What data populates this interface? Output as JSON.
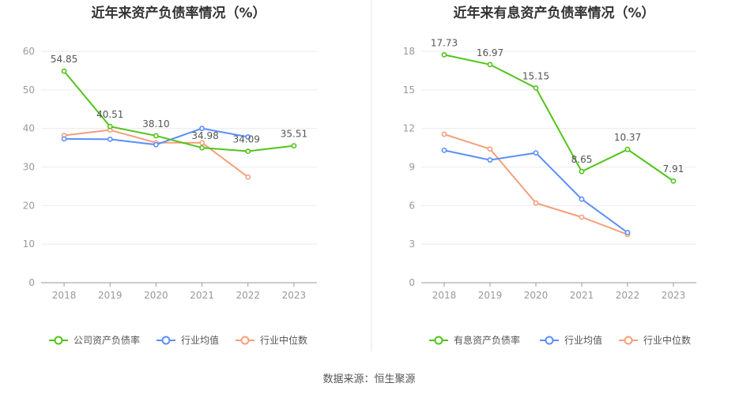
{
  "source": "数据来源：恒生聚源",
  "chart_data": [
    {
      "type": "line",
      "title": "近年来资产负债率情况（%）",
      "categories": [
        "2018",
        "2019",
        "2020",
        "2021",
        "2022",
        "2023"
      ],
      "ylim": [
        0,
        60
      ],
      "yticks": [
        "0",
        "10",
        "20",
        "30",
        "40",
        "50",
        "60"
      ],
      "grid": true,
      "legend_position": "bottom",
      "series": [
        {
          "name": "公司资产负债率",
          "color": "#52c41a",
          "values": [
            54.85,
            40.51,
            38.1,
            34.98,
            34.09,
            35.51
          ],
          "labels": [
            "54.85",
            "40.51",
            "38.10",
            "34.98",
            "34.09",
            "35.51"
          ]
        },
        {
          "name": "行业均值",
          "color": "#5b8ff9",
          "values": [
            37.3,
            37.2,
            35.8,
            40.0,
            37.8,
            null
          ]
        },
        {
          "name": "行业中位数",
          "color": "#f4a07c",
          "values": [
            38.2,
            39.6,
            36.3,
            36.3,
            27.4,
            null
          ]
        }
      ]
    },
    {
      "type": "line",
      "title": "近年来有息资产负债率情况（%）",
      "categories": [
        "2018",
        "2019",
        "2020",
        "2021",
        "2022",
        "2023"
      ],
      "ylim": [
        0,
        18
      ],
      "yticks": [
        "0",
        "3",
        "6",
        "9",
        "12",
        "15",
        "18"
      ],
      "grid": true,
      "legend_position": "bottom",
      "series": [
        {
          "name": "有息资产负债率",
          "color": "#52c41a",
          "values": [
            17.73,
            16.97,
            15.15,
            8.65,
            10.37,
            7.91
          ],
          "labels": [
            "17.73",
            "16.97",
            "15.15",
            "8.65",
            "10.37",
            "7.91"
          ]
        },
        {
          "name": "行业均值",
          "color": "#5b8ff9",
          "values": [
            10.3,
            9.55,
            10.1,
            6.5,
            3.9,
            null
          ]
        },
        {
          "name": "行业中位数",
          "color": "#f4a07c",
          "values": [
            11.55,
            10.4,
            6.2,
            5.1,
            3.75,
            null
          ]
        }
      ]
    }
  ]
}
